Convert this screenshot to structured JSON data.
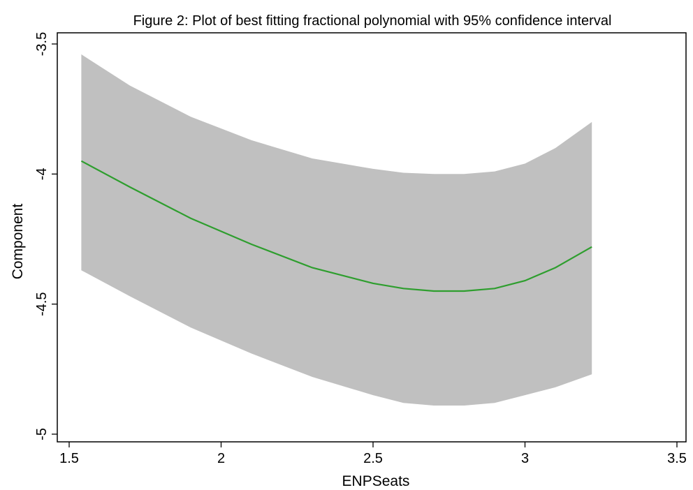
{
  "chart_data": {
    "type": "line",
    "title": "Figure 2: Plot of best fitting fractional polynomial with 95% confidence interval",
    "xlabel": "ENPSeats",
    "ylabel": "Component",
    "xlim": [
      1.5,
      3.5
    ],
    "ylim": [
      -5,
      -3.5
    ],
    "x_ticks": [
      1.5,
      2,
      2.5,
      3,
      3.5
    ],
    "x_tick_labels": [
      "1.5",
      "2",
      "2.5",
      "3",
      "3.5"
    ],
    "y_ticks": [
      -3.5,
      -4,
      -4.5,
      -5
    ],
    "y_tick_labels": [
      "-3.5",
      "-4",
      "-4.5",
      "-5"
    ],
    "grid": false,
    "colors": {
      "band": "#c0c0c0",
      "line": "#2e9e2e",
      "frame": "#000000"
    },
    "series": [
      {
        "kind": "line",
        "x": [
          1.54,
          1.7,
          1.9,
          2.1,
          2.3,
          2.5,
          2.6,
          2.7,
          2.8,
          2.9,
          3.0,
          3.1,
          3.22
        ],
        "y": [
          -3.95,
          -4.05,
          -4.17,
          -4.27,
          -4.36,
          -4.42,
          -4.44,
          -4.45,
          -4.45,
          -4.44,
          -4.41,
          -4.36,
          -4.28
        ]
      },
      {
        "kind": "band",
        "x": [
          1.54,
          1.7,
          1.9,
          2.1,
          2.3,
          2.5,
          2.6,
          2.7,
          2.8,
          2.9,
          3.0,
          3.1,
          3.22
        ],
        "lower": [
          -4.37,
          -4.47,
          -4.59,
          -4.69,
          -4.78,
          -4.85,
          -4.88,
          -4.89,
          -4.89,
          -4.88,
          -4.85,
          -4.82,
          -4.77
        ],
        "upper": [
          -3.54,
          -3.66,
          -3.78,
          -3.87,
          -3.94,
          -3.98,
          -3.995,
          -4.0,
          -4.0,
          -3.99,
          -3.96,
          -3.9,
          -3.8
        ]
      }
    ]
  }
}
